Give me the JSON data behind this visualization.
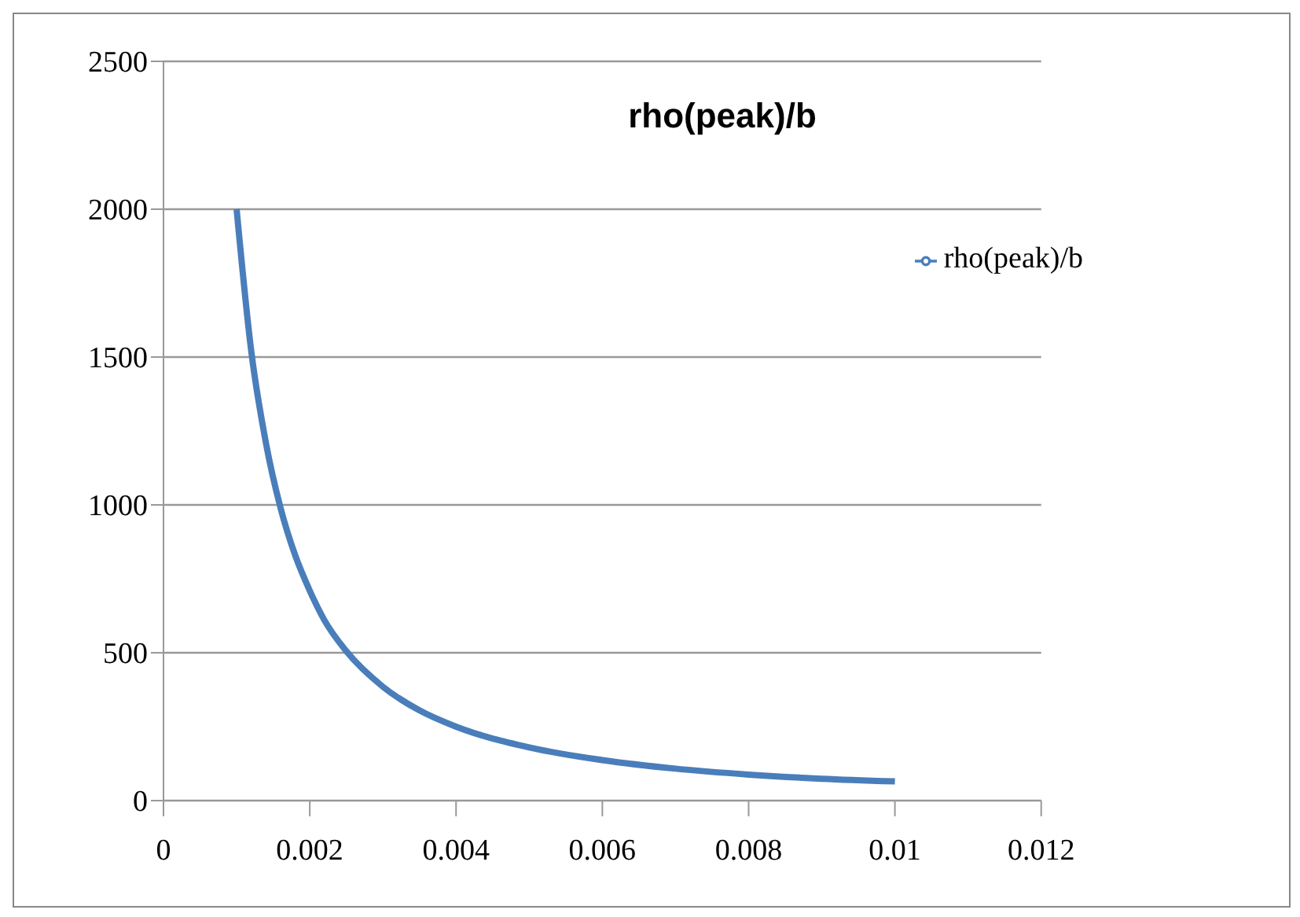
{
  "chart_data": {
    "type": "line",
    "title": "rho(peak)/b",
    "x": [
      0.001,
      0.0012,
      0.0014,
      0.0016,
      0.0018,
      0.002,
      0.0022,
      0.0025,
      0.003,
      0.0035,
      0.004,
      0.005,
      0.006,
      0.007,
      0.008,
      0.009,
      0.01
    ],
    "series": [
      {
        "name": "rho(peak)/b",
        "color": "#4a7ebb",
        "values": [
          2000,
          1520,
          1210,
          990,
          830,
          710,
          610,
          505,
          385,
          305,
          250,
          180,
          137,
          108,
          88,
          74,
          65
        ]
      }
    ],
    "xlim": [
      0,
      0.012
    ],
    "xticks": [
      0,
      0.002,
      0.004,
      0.006,
      0.008,
      0.01,
      0.012
    ],
    "ylim": [
      0,
      2500
    ],
    "yticks": [
      0,
      500,
      1000,
      1500,
      2000,
      2500
    ],
    "grid": "y",
    "legend": "top right",
    "marker": "none",
    "line_style": "solid"
  }
}
